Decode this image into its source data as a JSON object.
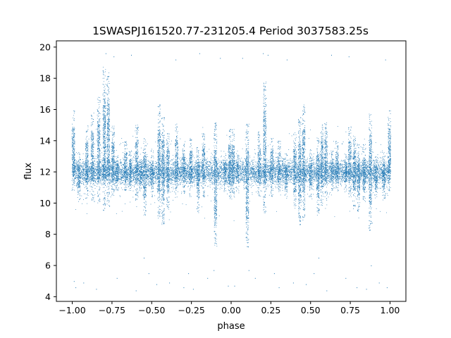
{
  "chart_data": {
    "type": "scatter",
    "title": "1SWASPJ161520.77-231205.4 Period 3037583.25s",
    "xlabel": "phase",
    "ylabel": "flux",
    "xlim": [
      -1.1,
      1.1
    ],
    "ylim": [
      3.7,
      20.4
    ],
    "xticks": [
      -1.0,
      -0.75,
      -0.5,
      -0.25,
      0.0,
      0.25,
      0.5,
      0.75,
      1.0
    ],
    "xtick_labels": [
      "−1.00",
      "−0.75",
      "−0.50",
      "−0.25",
      "0.00",
      "0.25",
      "0.50",
      "0.75",
      "1.00"
    ],
    "yticks": [
      4,
      6,
      8,
      10,
      12,
      14,
      16,
      18,
      20
    ],
    "ytick_labels": [
      "4",
      "6",
      "8",
      "10",
      "12",
      "14",
      "16",
      "18",
      "20"
    ],
    "grid": false,
    "legend": "none",
    "series": [
      {
        "color": "#1f77b4",
        "marker": "point",
        "summary": {
          "x_range": [
            -1.0,
            1.0
          ],
          "flux_center": 12,
          "flux_min": 4.4,
          "flux_max": 19.6,
          "symmetric_about_phase": 0.0
        },
        "dense_columns": [
          {
            "x": -0.995,
            "lo": 10.8,
            "hi": 16.0
          },
          {
            "x": -0.96,
            "lo": 10.2,
            "hi": 13.2
          },
          {
            "x": -0.91,
            "lo": 10.3,
            "hi": 15.0
          },
          {
            "x": -0.875,
            "lo": 10.2,
            "hi": 15.8
          },
          {
            "x": -0.835,
            "lo": 10.0,
            "hi": 16.8
          },
          {
            "x": -0.8,
            "lo": 9.5,
            "hi": 18.8
          },
          {
            "x": -0.775,
            "lo": 9.8,
            "hi": 18.4
          },
          {
            "x": -0.745,
            "lo": 10.4,
            "hi": 15.0
          },
          {
            "x": -0.72,
            "lo": 10.8,
            "hi": 13.2
          },
          {
            "x": -0.665,
            "lo": 10.8,
            "hi": 14.0
          },
          {
            "x": -0.635,
            "lo": 10.8,
            "hi": 13.4
          },
          {
            "x": -0.595,
            "lo": 10.2,
            "hi": 15.2
          },
          {
            "x": -0.57,
            "lo": 10.8,
            "hi": 12.8
          },
          {
            "x": -0.545,
            "lo": 9.2,
            "hi": 14.2
          },
          {
            "x": -0.5,
            "lo": 10.4,
            "hi": 13.4
          },
          {
            "x": -0.455,
            "lo": 9.0,
            "hi": 16.4
          },
          {
            "x": -0.43,
            "lo": 8.6,
            "hi": 15.6
          },
          {
            "x": -0.4,
            "lo": 9.6,
            "hi": 14.6
          },
          {
            "x": -0.345,
            "lo": 10.2,
            "hi": 15.2
          },
          {
            "x": -0.3,
            "lo": 10.6,
            "hi": 14.0
          },
          {
            "x": -0.255,
            "lo": 10.4,
            "hi": 14.2
          },
          {
            "x": -0.21,
            "lo": 9.4,
            "hi": 13.6
          },
          {
            "x": -0.175,
            "lo": 10.4,
            "hi": 14.6
          },
          {
            "x": -0.1,
            "lo": 7.2,
            "hi": 15.2
          },
          {
            "x": -0.04,
            "lo": 10.8,
            "hi": 13.2
          },
          {
            "x": -0.01,
            "lo": 10.2,
            "hi": 14.8
          },
          {
            "x": 0.01,
            "lo": 10.2,
            "hi": 14.8
          },
          {
            "x": 0.04,
            "lo": 10.8,
            "hi": 13.2
          },
          {
            "x": 0.1,
            "lo": 7.2,
            "hi": 15.2
          },
          {
            "x": 0.175,
            "lo": 10.4,
            "hi": 14.6
          },
          {
            "x": 0.21,
            "lo": 9.4,
            "hi": 17.8
          },
          {
            "x": 0.255,
            "lo": 10.4,
            "hi": 14.2
          },
          {
            "x": 0.3,
            "lo": 10.6,
            "hi": 14.0
          },
          {
            "x": 0.345,
            "lo": 10.2,
            "hi": 13.2
          },
          {
            "x": 0.4,
            "lo": 9.6,
            "hi": 14.6
          },
          {
            "x": 0.43,
            "lo": 8.6,
            "hi": 15.6
          },
          {
            "x": 0.455,
            "lo": 9.0,
            "hi": 16.4
          },
          {
            "x": 0.5,
            "lo": 10.4,
            "hi": 13.4
          },
          {
            "x": 0.545,
            "lo": 9.2,
            "hi": 14.2
          },
          {
            "x": 0.57,
            "lo": 9.8,
            "hi": 15.2
          },
          {
            "x": 0.595,
            "lo": 10.2,
            "hi": 15.2
          },
          {
            "x": 0.635,
            "lo": 10.8,
            "hi": 13.4
          },
          {
            "x": 0.665,
            "lo": 10.8,
            "hi": 14.0
          },
          {
            "x": 0.72,
            "lo": 10.8,
            "hi": 13.2
          },
          {
            "x": 0.745,
            "lo": 10.4,
            "hi": 15.0
          },
          {
            "x": 0.775,
            "lo": 9.8,
            "hi": 14.4
          },
          {
            "x": 0.8,
            "lo": 9.5,
            "hi": 13.8
          },
          {
            "x": 0.835,
            "lo": 10.0,
            "hi": 13.8
          },
          {
            "x": 0.875,
            "lo": 8.2,
            "hi": 15.8
          },
          {
            "x": 0.91,
            "lo": 10.3,
            "hi": 13.0
          },
          {
            "x": 0.96,
            "lo": 10.2,
            "hi": 13.2
          },
          {
            "x": 0.995,
            "lo": 10.8,
            "hi": 16.0
          }
        ],
        "outliers": [
          {
            "x": -0.99,
            "y": 5.0
          },
          {
            "x": -0.98,
            "y": 4.6
          },
          {
            "x": -0.93,
            "y": 4.9
          },
          {
            "x": -0.85,
            "y": 4.5
          },
          {
            "x": -0.79,
            "y": 19.6
          },
          {
            "x": -0.74,
            "y": 19.4
          },
          {
            "x": -0.72,
            "y": 5.2
          },
          {
            "x": -0.63,
            "y": 19.5
          },
          {
            "x": -0.6,
            "y": 4.4
          },
          {
            "x": -0.55,
            "y": 6.5
          },
          {
            "x": -0.52,
            "y": 5.5
          },
          {
            "x": -0.47,
            "y": 4.8
          },
          {
            "x": -0.39,
            "y": 4.9
          },
          {
            "x": -0.35,
            "y": 19.2
          },
          {
            "x": -0.3,
            "y": 4.6
          },
          {
            "x": -0.27,
            "y": 5.5
          },
          {
            "x": -0.24,
            "y": 4.5
          },
          {
            "x": -0.2,
            "y": 19.6
          },
          {
            "x": -0.15,
            "y": 5.2
          },
          {
            "x": -0.11,
            "y": 5.7
          },
          {
            "x": -0.07,
            "y": 19.3
          },
          {
            "x": -0.02,
            "y": 4.7
          },
          {
            "x": 0.02,
            "y": 4.7
          },
          {
            "x": 0.07,
            "y": 19.3
          },
          {
            "x": 0.11,
            "y": 5.7
          },
          {
            "x": 0.15,
            "y": 5.2
          },
          {
            "x": 0.2,
            "y": 19.6
          },
          {
            "x": 0.23,
            "y": 19.5
          },
          {
            "x": 0.27,
            "y": 5.5
          },
          {
            "x": 0.3,
            "y": 4.6
          },
          {
            "x": 0.35,
            "y": 19.2
          },
          {
            "x": 0.39,
            "y": 4.9
          },
          {
            "x": 0.47,
            "y": 4.8
          },
          {
            "x": 0.52,
            "y": 5.5
          },
          {
            "x": 0.55,
            "y": 6.5
          },
          {
            "x": 0.6,
            "y": 4.4
          },
          {
            "x": 0.63,
            "y": 19.5
          },
          {
            "x": 0.72,
            "y": 5.2
          },
          {
            "x": 0.74,
            "y": 19.4
          },
          {
            "x": 0.79,
            "y": 4.6
          },
          {
            "x": 0.85,
            "y": 4.5
          },
          {
            "x": 0.88,
            "y": 6.0
          },
          {
            "x": 0.93,
            "y": 4.9
          },
          {
            "x": 0.97,
            "y": 19.2
          },
          {
            "x": 0.98,
            "y": 4.6
          }
        ]
      }
    ]
  }
}
